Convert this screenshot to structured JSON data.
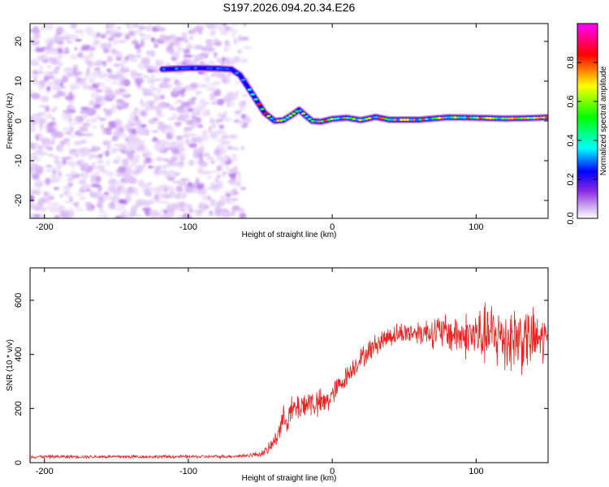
{
  "figure_title": "S197.2026.094.20.34.E26",
  "chart_data": [
    {
      "type": "heatmap",
      "title": "S197.2026.094.20.34.E26",
      "xlabel": "Height of straight line (km)",
      "ylabel": "Frequency (Hz)",
      "xlim": [
        -210,
        150
      ],
      "ylim": [
        -24.5,
        24.5
      ],
      "x_ticks": [
        -200,
        -100,
        0,
        100
      ],
      "x_tick_labels": [
        "-200",
        "-100",
        "0",
        "100"
      ],
      "y_ticks": [
        -20,
        -10,
        0,
        10,
        20
      ],
      "y_tick_labels": [
        "-20",
        "-10",
        "0",
        "10",
        "20"
      ],
      "noise_region_x": [
        -210,
        -57
      ],
      "frequency_track": {
        "x": [
          -118,
          -100,
          -90,
          -80,
          -70,
          -64,
          -55,
          -47,
          -40,
          -34,
          -28,
          -23,
          -19,
          -14,
          -8,
          0,
          10,
          20,
          30,
          40,
          60,
          80,
          100,
          120,
          135,
          150
        ],
        "y": [
          13,
          13.3,
          13.3,
          13.2,
          13,
          11.5,
          6.5,
          2,
          0,
          0.2,
          1.5,
          2.8,
          1.5,
          0,
          -0.2,
          0.5,
          0.8,
          0.2,
          1,
          0.3,
          0.3,
          0.9,
          0.8,
          0.6,
          0.7,
          0.9
        ]
      },
      "colorbar": {
        "label": "Normalized spectral amplitude",
        "range": [
          0,
          1
        ],
        "ticks": [
          0,
          0.2,
          0.4,
          0.6,
          0.8
        ],
        "tick_labels": [
          "0.0",
          "0.2",
          "0.4",
          "0.6",
          "0.8"
        ],
        "colormap": [
          "#ffffff",
          "#cfaaf2",
          "#8a2be2",
          "#0000ff",
          "#00ffff",
          "#00ff00",
          "#ffff00",
          "#ff0000",
          "#ff00ff"
        ]
      },
      "grid": false
    },
    {
      "type": "line",
      "xlabel": "Height of straight line (km)",
      "ylabel": "SNR (10 * v/v)",
      "xlim": [
        -210,
        150
      ],
      "ylim": [
        0,
        720
      ],
      "x_ticks": [
        -200,
        -100,
        0,
        100
      ],
      "x_tick_labels": [
        "-200",
        "-100",
        "0",
        "100"
      ],
      "y_ticks": [
        0,
        200,
        400,
        600
      ],
      "y_tick_labels": [
        "0",
        "200",
        "400",
        "600"
      ],
      "line_color": "#ee2020",
      "grid": false,
      "series": [
        {
          "x": [
            -210,
            -190,
            -170,
            -150,
            -130,
            -110,
            -90,
            -70,
            -60,
            -50,
            -45,
            -40,
            -35,
            -30,
            -25,
            -20,
            -15,
            -10,
            -5,
            0,
            5,
            10,
            15,
            20,
            25,
            30,
            40,
            50,
            60,
            70,
            80,
            90,
            100,
            110,
            120,
            130,
            140,
            150
          ],
          "y": [
            22,
            22,
            22,
            22,
            22,
            22,
            22,
            23,
            26,
            32,
            45,
            80,
            150,
            180,
            200,
            215,
            225,
            215,
            220,
            250,
            285,
            320,
            355,
            385,
            410,
            435,
            470,
            480,
            482,
            485,
            480,
            470,
            470,
            470,
            465,
            460,
            455,
            455
          ],
          "spread": [
            6,
            6,
            6,
            6,
            6,
            6,
            6,
            6,
            7,
            10,
            18,
            30,
            50,
            55,
            55,
            55,
            55,
            55,
            50,
            45,
            40,
            38,
            38,
            40,
            40,
            40,
            40,
            40,
            45,
            60,
            70,
            80,
            100,
            120,
            130,
            130,
            110,
            90
          ]
        }
      ]
    }
  ]
}
